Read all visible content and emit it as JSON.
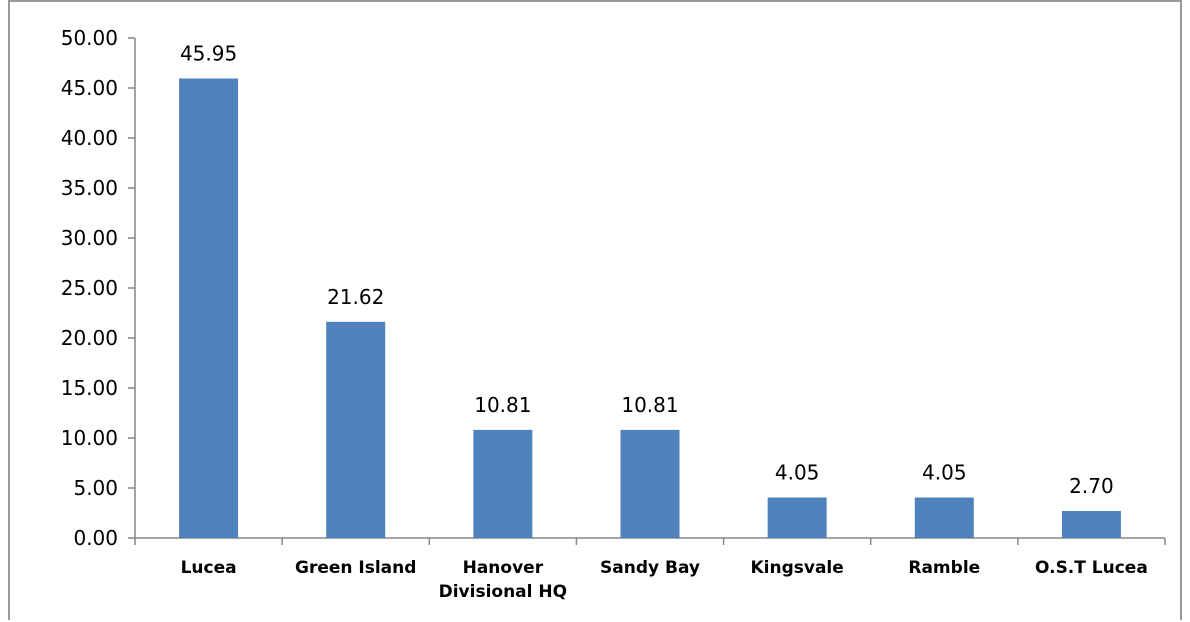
{
  "chart_data": {
    "type": "bar",
    "categories": [
      "Lucea",
      "Green Island",
      "Hanover Divisional HQ",
      "Sandy Bay",
      "Kingsvale",
      "Ramble",
      "O.S.T Lucea"
    ],
    "category_lines": [
      [
        "Lucea"
      ],
      [
        "Green Island"
      ],
      [
        "Hanover",
        "Divisional HQ"
      ],
      [
        "Sandy Bay"
      ],
      [
        "Kingsvale"
      ],
      [
        "Ramble"
      ],
      [
        "O.S.T Lucea"
      ]
    ],
    "values": [
      45.95,
      21.62,
      10.81,
      10.81,
      4.05,
      4.05,
      2.7
    ],
    "data_labels": [
      "45.95",
      "21.62",
      "10.81",
      "10.81",
      "4.05",
      "4.05",
      "2.70"
    ],
    "yticks": [
      "0.00",
      "5.00",
      "10.00",
      "15.00",
      "20.00",
      "25.00",
      "30.00",
      "35.00",
      "40.00",
      "45.00",
      "50.00"
    ],
    "ylim": [
      0,
      50
    ],
    "title": "",
    "xlabel": "",
    "ylabel": "",
    "grid": false,
    "legend": "none",
    "bar_color": "#4F81BD"
  }
}
